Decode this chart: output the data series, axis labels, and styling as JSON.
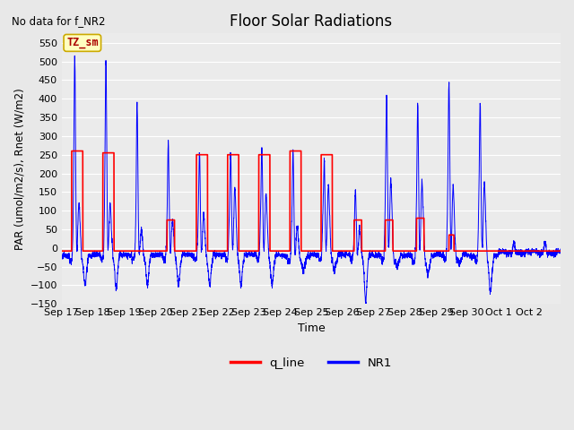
{
  "title": "Floor Solar Radiations",
  "xlabel": "Time",
  "ylabel": "PAR (umol/m2/s), Rnet (W/m2)",
  "annotation_text": "No data for f_NR2",
  "legend_label1": "q_line",
  "legend_label2": "NR1",
  "legend_color1": "#FF0000",
  "legend_color2": "#0000FF",
  "box_label": "TZ_sm",
  "ylim": [
    -150,
    575
  ],
  "yticks": [
    -150,
    -100,
    -50,
    0,
    50,
    100,
    150,
    200,
    250,
    300,
    350,
    400,
    450,
    500,
    550
  ],
  "background_color": "#E8E8E8",
  "plot_bg_color": "#EBEBEB",
  "grid_color": "#FFFFFF",
  "n_days": 16,
  "xtick_labels": [
    "Sep 17",
    "Sep 18",
    "Sep 19",
    "Sep 20",
    "Sep 21",
    "Sep 22",
    "Sep 23",
    "Sep 24",
    "Sep 25",
    "Sep 26",
    "Sep 27",
    "Sep 28",
    "Sep 29",
    "Sep 30",
    "Oct 1",
    "Oct 2"
  ],
  "q_peaks": [
    260,
    255,
    0,
    75,
    250,
    250,
    250,
    260,
    250,
    75,
    75,
    80,
    35,
    0,
    0,
    0
  ],
  "q_start": [
    0.32,
    0.32,
    0.5,
    0.38,
    0.32,
    0.32,
    0.32,
    0.32,
    0.32,
    0.38,
    0.38,
    0.38,
    0.42,
    0.5,
    0.5,
    0.5
  ],
  "q_end": [
    0.68,
    0.68,
    0.5,
    0.62,
    0.68,
    0.68,
    0.68,
    0.68,
    0.68,
    0.62,
    0.62,
    0.62,
    0.58,
    0.5,
    0.5,
    0.5
  ],
  "q_neg": [
    -8,
    -8,
    -8,
    -8,
    -8,
    -8,
    -8,
    -8,
    -8,
    -8,
    -8,
    -8,
    -8,
    -8,
    -8,
    -8
  ],
  "nr1_main_peak": [
    510,
    500,
    390,
    280,
    255,
    250,
    265,
    260,
    230,
    155,
    405,
    380,
    445,
    390,
    0,
    0
  ],
  "nr1_main_center": [
    0.42,
    0.42,
    0.42,
    0.42,
    0.42,
    0.42,
    0.42,
    0.42,
    0.42,
    0.42,
    0.42,
    0.42,
    0.42,
    0.42,
    0.5,
    0.5
  ],
  "nr1_main_width": [
    0.025,
    0.025,
    0.025,
    0.025,
    0.025,
    0.025,
    0.025,
    0.025,
    0.025,
    0.025,
    0.025,
    0.025,
    0.025,
    0.025,
    0.025,
    0.025
  ],
  "nr1_sub_peak": [
    185,
    175,
    95,
    125,
    140,
    225,
    205,
    110,
    235,
    93,
    260,
    250,
    230,
    250,
    0,
    0
  ],
  "nr1_sub_center": [
    0.55,
    0.55,
    0.55,
    0.55,
    0.55,
    0.55,
    0.55,
    0.55,
    0.55,
    0.55,
    0.55,
    0.55,
    0.55,
    0.55,
    0.5,
    0.5
  ],
  "nr1_neg_level": [
    -35,
    -30,
    -30,
    -30,
    -30,
    -30,
    -30,
    -35,
    -30,
    -30,
    -35,
    -35,
    -30,
    -35,
    -15,
    -15
  ],
  "nr1_neg_spike": [
    -100,
    -110,
    -100,
    -100,
    -100,
    -100,
    -100,
    -60,
    -60,
    -145,
    -50,
    -70,
    -40,
    -120,
    0,
    0
  ],
  "nr1_neg_spike_pos": [
    0.75,
    0.75,
    0.75,
    0.75,
    0.75,
    0.75,
    0.75,
    0.75,
    0.75,
    0.75,
    0.75,
    0.75,
    0.75,
    0.75,
    0.5,
    0.5
  ]
}
